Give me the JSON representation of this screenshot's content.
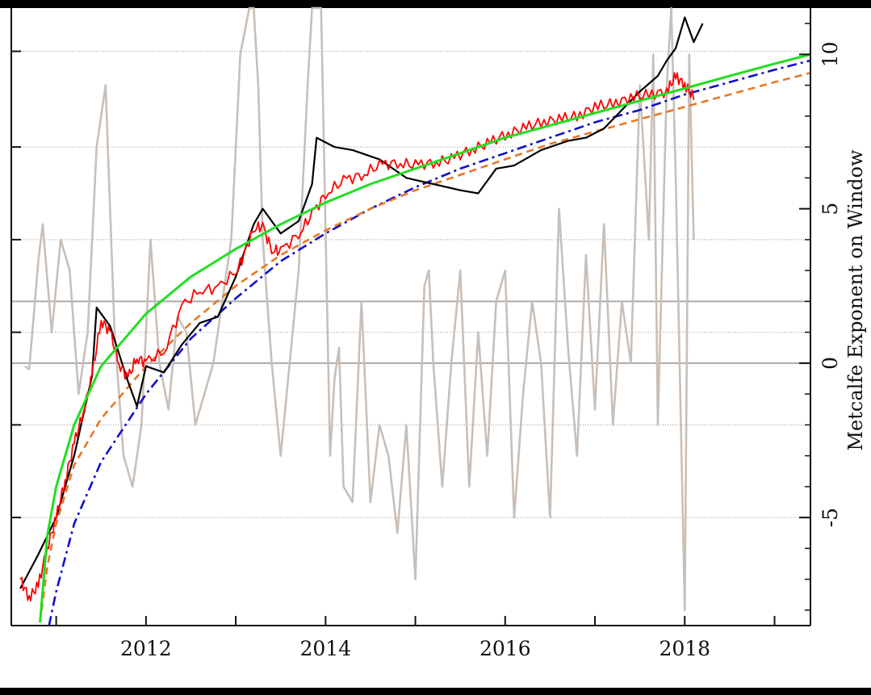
{
  "chart_data": {
    "type": "line",
    "title": "",
    "xlabel": "",
    "ylabel_right": "Metcalfe Exponent on Window",
    "xlim": [
      2010.5,
      2019.4
    ],
    "ylim_right": [
      -8.5,
      11.5
    ],
    "x_tick_labels": [
      "2012",
      "2014",
      "2016",
      "2018"
    ],
    "x_tick_values": [
      2012,
      2014,
      2016,
      2018
    ],
    "x_minor_ticks": [
      2011,
      2013,
      2015,
      2017,
      2019
    ],
    "right_tick_labels": [
      "10",
      "5",
      "0",
      "-5"
    ],
    "right_tick_values": [
      10,
      5,
      0,
      -5
    ],
    "left_tick_labels": [
      "",
      "",
      "",
      "",
      "",
      "",
      ""
    ],
    "horizontal_gridlines_right": [
      10.1,
      7,
      4,
      1,
      -2,
      -5
    ],
    "reference_lines_right": [
      2,
      0
    ],
    "grid": true,
    "colors": {
      "price": "#000000",
      "model": "#ff0000",
      "fit_green": "#22dd22",
      "fit_orange": "#e87722",
      "fit_blue": "#1010cc",
      "exponent": "#c8bfb8",
      "reference": "#aaaaaa"
    },
    "series": [
      {
        "color": "#000000",
        "x": [
          2010.6,
          2010.8,
          2011.0,
          2011.2,
          2011.4,
          2011.45,
          2011.6,
          2011.8,
          2011.9,
          2012.0,
          2012.2,
          2012.4,
          2012.6,
          2012.8,
          2013.0,
          2013.2,
          2013.3,
          2013.5,
          2013.7,
          2013.85,
          2013.9,
          2014.1,
          2014.3,
          2014.6,
          2014.9,
          2015.2,
          2015.5,
          2015.7,
          2015.9,
          2016.1,
          2016.4,
          2016.7,
          2016.9,
          2017.1,
          2017.3,
          2017.5,
          2017.7,
          2017.8,
          2017.9,
          2018.0,
          2018.1,
          2018.2
        ],
        "y": [
          -7.3,
          -6.2,
          -5.0,
          -3.0,
          -0.4,
          1.8,
          1.2,
          -0.6,
          -1.4,
          -0.1,
          -0.3,
          0.6,
          1.3,
          1.5,
          2.8,
          4.5,
          5.0,
          4.2,
          4.6,
          5.8,
          7.3,
          7.0,
          6.9,
          6.6,
          6.0,
          5.8,
          5.6,
          5.5,
          6.3,
          6.4,
          6.9,
          7.2,
          7.3,
          7.6,
          8.2,
          8.8,
          9.3,
          9.8,
          10.2,
          11.2,
          10.4,
          11.0
        ]
      },
      {
        "color": "#ff0000",
        "x": [
          2010.6,
          2010.7,
          2010.8,
          2010.9,
          2011.0,
          2011.1,
          2011.2,
          2011.3,
          2011.4,
          2011.5,
          2011.6,
          2011.7,
          2011.8,
          2011.9,
          2012.0,
          2012.2,
          2012.4,
          2012.6,
          2012.8,
          2013.0,
          2013.1,
          2013.2,
          2013.3,
          2013.4,
          2013.5,
          2013.7,
          2013.85,
          2014.0,
          2014.2,
          2014.4,
          2014.6,
          2014.8,
          2015.0,
          2015.2,
          2015.4,
          2015.6,
          2015.8,
          2016.0,
          2016.2,
          2016.4,
          2016.6,
          2016.8,
          2017.0,
          2017.2,
          2017.4,
          2017.6,
          2017.8,
          2017.9,
          2018.0,
          2018.1
        ],
        "y": [
          -7.0,
          -7.6,
          -7.2,
          -6.0,
          -5.0,
          -3.8,
          -2.6,
          -1.6,
          -0.4,
          1.4,
          1.0,
          0.0,
          -0.5,
          0.2,
          0.0,
          0.4,
          1.8,
          2.4,
          2.4,
          3.0,
          3.5,
          4.4,
          4.4,
          3.7,
          3.6,
          4.2,
          4.8,
          5.5,
          5.9,
          6.1,
          6.4,
          6.5,
          6.4,
          6.5,
          6.6,
          6.9,
          7.1,
          7.4,
          7.6,
          7.8,
          7.9,
          8.0,
          8.3,
          8.4,
          8.6,
          8.7,
          8.8,
          9.3,
          9.0,
          8.6
        ]
      },
      {
        "color": "#22dd22",
        "x": [
          2010.82,
          2010.9,
          2011.0,
          2011.2,
          2011.5,
          2012.0,
          2012.5,
          2013.0,
          2013.5,
          2014.0,
          2014.5,
          2015.0,
          2015.5,
          2016.0,
          2016.5,
          2017.0,
          2017.5,
          2018.0,
          2018.5,
          2019.0,
          2019.4
        ],
        "y": [
          -8.4,
          -5.6,
          -4.0,
          -2.0,
          -0.1,
          1.6,
          2.8,
          3.7,
          4.5,
          5.2,
          5.8,
          6.3,
          6.8,
          7.3,
          7.7,
          8.1,
          8.5,
          8.9,
          9.3,
          9.7,
          10.0
        ]
      },
      {
        "color": "#e87722",
        "x": [
          2010.82,
          2010.9,
          2011.0,
          2011.2,
          2011.5,
          2012.0,
          2012.5,
          2013.0,
          2013.5,
          2014.0,
          2014.5,
          2015.0,
          2015.5,
          2016.0,
          2016.5,
          2017.0,
          2017.5,
          2018.0,
          2018.5,
          2019.0,
          2019.4
        ],
        "y": [
          -8.4,
          -6.6,
          -5.2,
          -3.3,
          -1.8,
          -0.1,
          1.3,
          2.5,
          3.5,
          4.3,
          5.0,
          5.6,
          6.1,
          6.6,
          7.1,
          7.5,
          7.9,
          8.3,
          8.7,
          9.1,
          9.4
        ]
      },
      {
        "color": "#1010cc",
        "x": [
          2010.92,
          2011.0,
          2011.2,
          2011.5,
          2012.0,
          2012.5,
          2013.0,
          2013.5,
          2014.0,
          2014.5,
          2015.0,
          2015.5,
          2016.0,
          2016.5,
          2017.0,
          2017.5,
          2018.0,
          2018.5,
          2019.0,
          2019.4
        ],
        "y": [
          -8.5,
          -7.4,
          -5.2,
          -3.2,
          -1.0,
          0.8,
          2.1,
          3.3,
          4.2,
          5.0,
          5.7,
          6.3,
          6.8,
          7.3,
          7.8,
          8.2,
          8.7,
          9.1,
          9.5,
          9.8
        ]
      },
      {
        "color": "#c8bfb8",
        "x": [
          2010.65,
          2010.7,
          2010.8,
          2010.85,
          2010.95,
          2011.05,
          2011.15,
          2011.25,
          2011.35,
          2011.45,
          2011.55,
          2011.65,
          2011.75,
          2011.85,
          2011.95,
          2012.05,
          2012.15,
          2012.25,
          2012.35,
          2012.45,
          2012.55,
          2012.65,
          2012.75,
          2012.85,
          2012.95,
          2013.05,
          2013.15,
          2013.2,
          2013.25,
          2013.3,
          2013.4,
          2013.5,
          2013.6,
          2013.7,
          2013.8,
          2013.85,
          2013.95,
          2014.05,
          2014.1,
          2014.15,
          2014.2,
          2014.3,
          2014.4,
          2014.5,
          2014.6,
          2014.7,
          2014.8,
          2014.9,
          2015.0,
          2015.1,
          2015.15,
          2015.2,
          2015.3,
          2015.4,
          2015.5,
          2015.6,
          2015.7,
          2015.8,
          2015.9,
          2016.0,
          2016.1,
          2016.2,
          2016.3,
          2016.4,
          2016.5,
          2016.6,
          2016.7,
          2016.8,
          2016.9,
          2017.0,
          2017.1,
          2017.2,
          2017.3,
          2017.4,
          2017.5,
          2017.6,
          2017.65,
          2017.7,
          2017.8,
          2017.85,
          2017.9,
          2018.0,
          2018.05,
          2018.1
        ],
        "y": [
          -0.1,
          -0.2,
          3.3,
          4.5,
          1.0,
          4.0,
          3.0,
          -1.0,
          1.0,
          7.0,
          9.0,
          1.0,
          -3.0,
          -4.0,
          -2.0,
          4.0,
          0.0,
          -1.5,
          1.5,
          1.0,
          -2.0,
          -1.0,
          0.0,
          2.0,
          4.0,
          10.0,
          12.0,
          14.0,
          9.0,
          4.0,
          0.0,
          -3.0,
          0.0,
          3.0,
          9.0,
          14.0,
          12.0,
          -3.0,
          -0.5,
          0.5,
          -4.0,
          -4.5,
          2.0,
          -4.5,
          -2.0,
          -3.0,
          -5.5,
          -2.0,
          -7.0,
          2.5,
          3.0,
          0.0,
          -4.0,
          0.0,
          3.0,
          -4.0,
          1.0,
          -3.0,
          2.0,
          3.0,
          -5.0,
          -1.0,
          2.0,
          0.0,
          -5.0,
          5.0,
          0.5,
          -3.0,
          3.5,
          -1.5,
          4.5,
          -2.0,
          2.0,
          0.0,
          9.0,
          4.0,
          10.0,
          -2.0,
          9.0,
          12.0,
          6.0,
          -8.0,
          10.0,
          4.0
        ]
      }
    ]
  }
}
